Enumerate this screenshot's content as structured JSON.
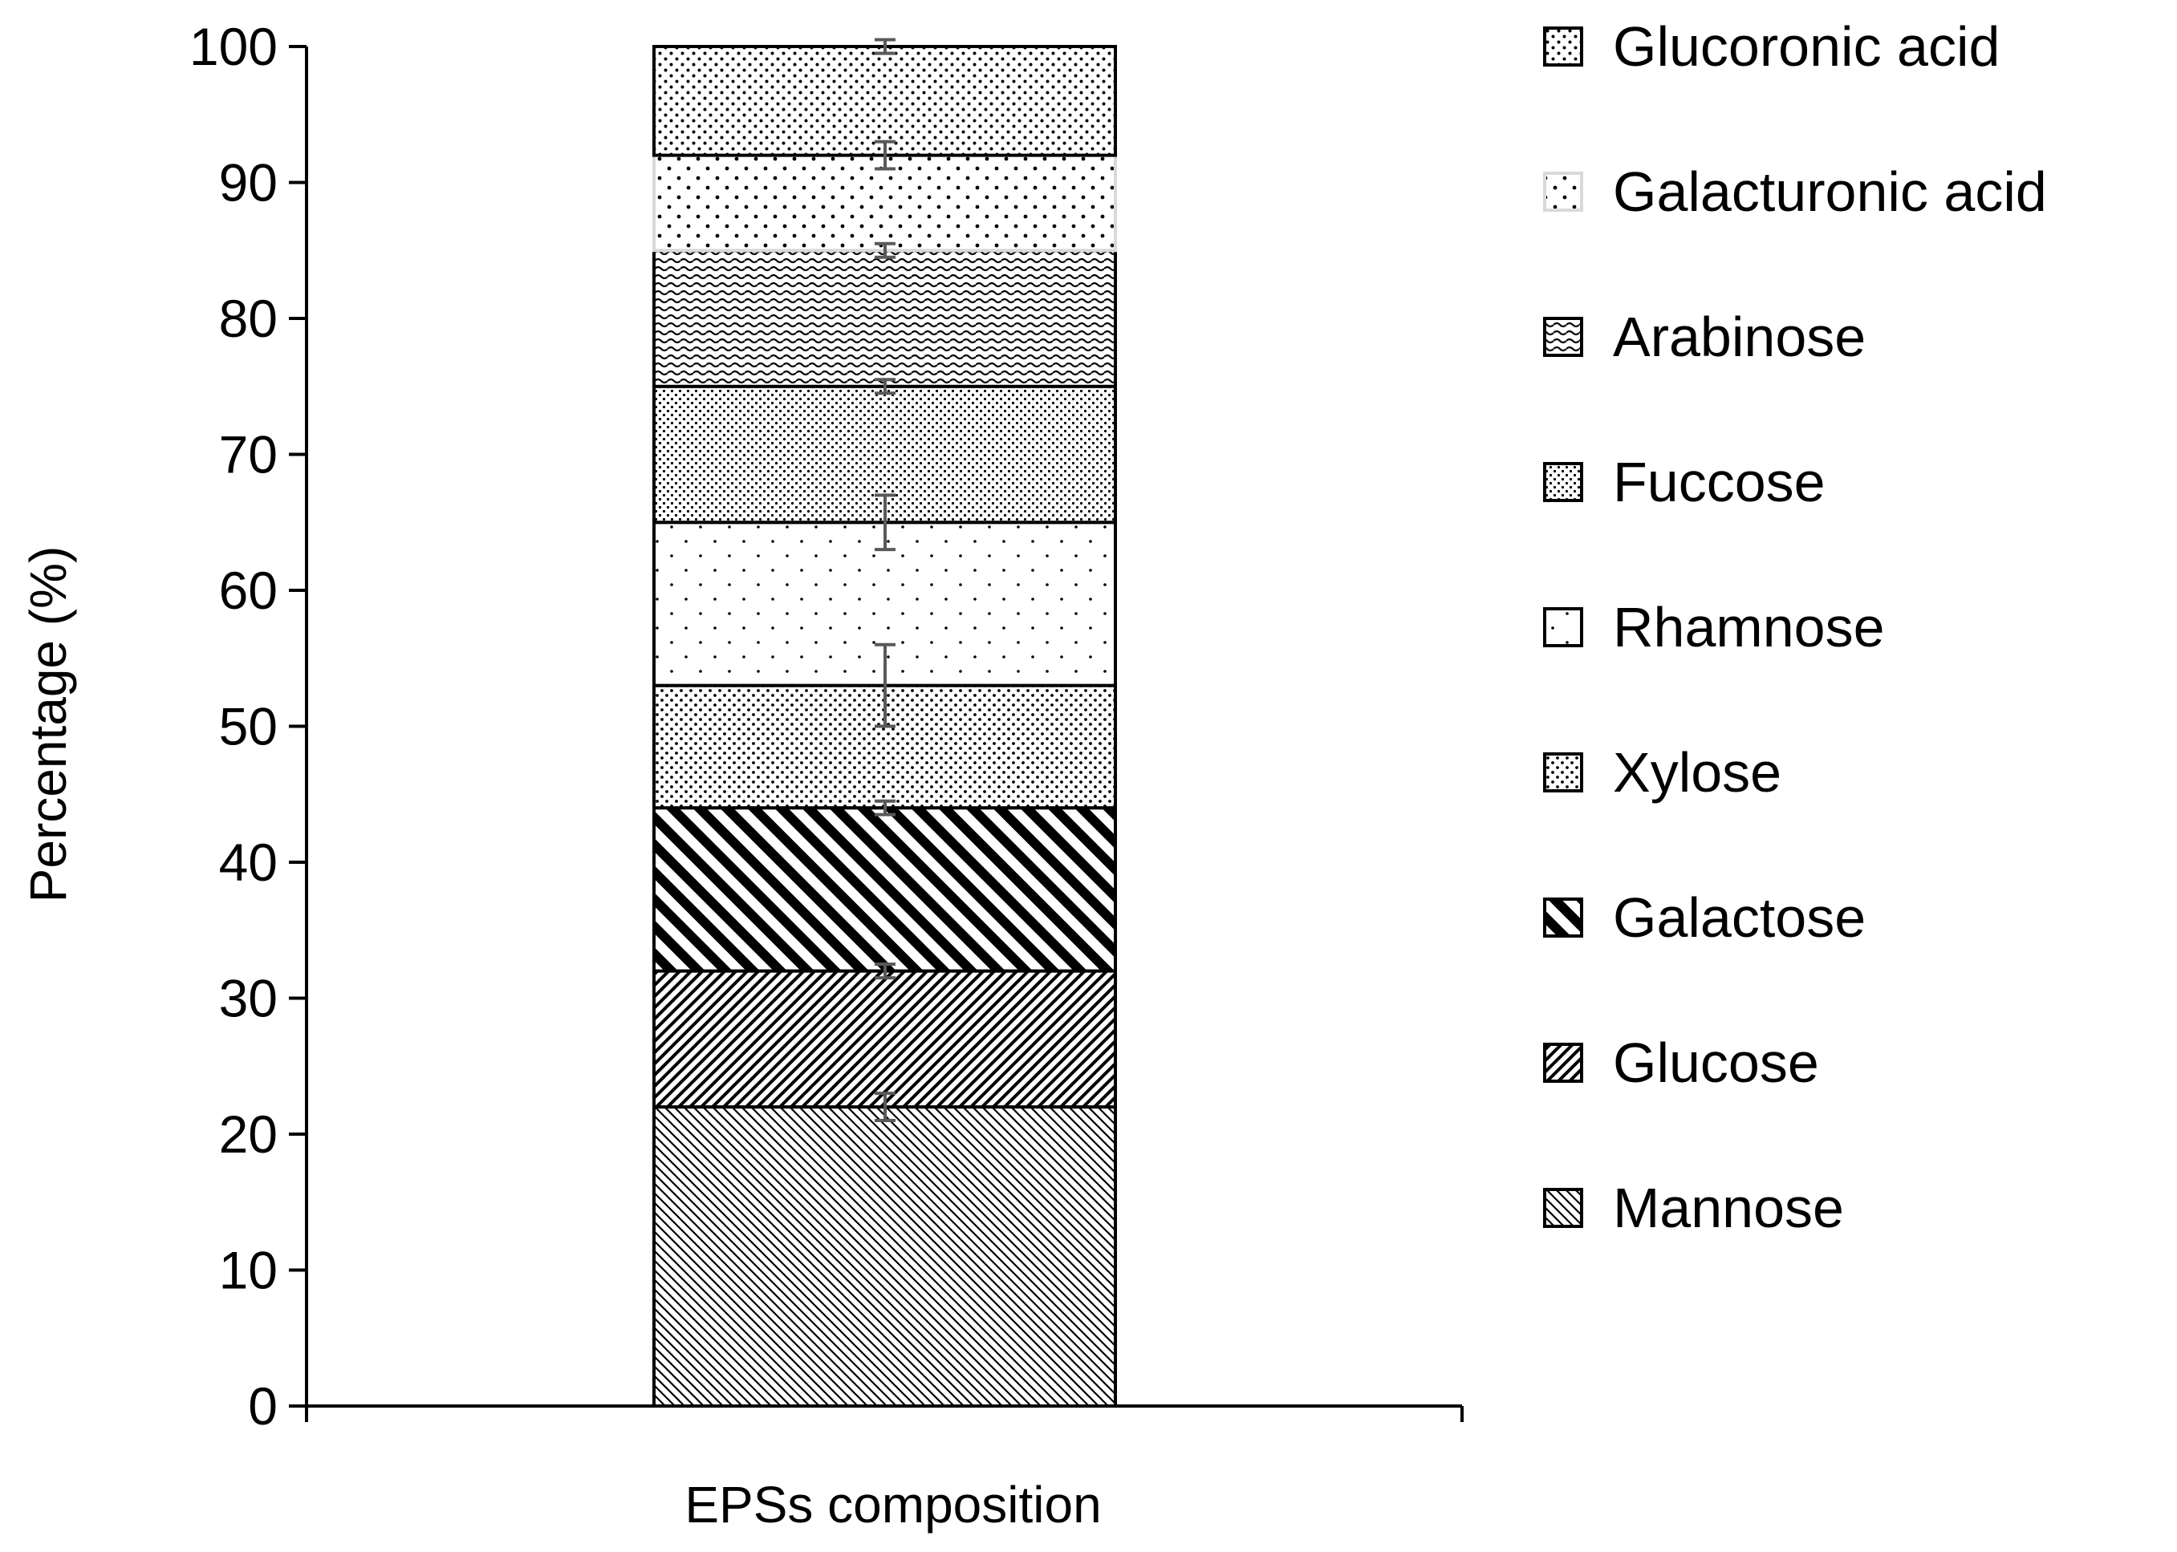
{
  "chart_data": {
    "type": "bar",
    "stacked": true,
    "title": "",
    "xlabel": "EPSs composition",
    "ylabel": "Percentage (%)",
    "ylim": [
      0,
      100
    ],
    "yticks": [
      0,
      10,
      20,
      30,
      40,
      50,
      60,
      70,
      80,
      90,
      100
    ],
    "grid": false,
    "legend_position": "right",
    "categories": [
      "EPSs composition"
    ],
    "series": [
      {
        "name": "Mannose",
        "values": [
          22
        ],
        "error": [
          1
        ],
        "pattern": "diag-dense-down"
      },
      {
        "name": "Glucose",
        "values": [
          10
        ],
        "error": [
          0.5
        ],
        "pattern": "diag-up"
      },
      {
        "name": "Galactose",
        "values": [
          12
        ],
        "error": [
          0.5
        ],
        "pattern": "diag-bold-down"
      },
      {
        "name": "Xylose",
        "values": [
          9
        ],
        "error": [
          3
        ],
        "pattern": "dots-medium"
      },
      {
        "name": "Rhamnose",
        "values": [
          12
        ],
        "error": [
          2
        ],
        "pattern": "dots-sparse"
      },
      {
        "name": "Fuccose",
        "values": [
          10
        ],
        "error": [
          0.5
        ],
        "pattern": "dots-small"
      },
      {
        "name": "Arabinose",
        "values": [
          10
        ],
        "error": [
          0.5
        ],
        "pattern": "waves"
      },
      {
        "name": "Galacturonic acid",
        "values": [
          7
        ],
        "error": [
          1
        ],
        "pattern": "dots-large"
      },
      {
        "name": "Glucoronic acid",
        "values": [
          8
        ],
        "error": [
          0.5
        ],
        "pattern": "dots-grid"
      }
    ],
    "legend_order": [
      "Glucoronic acid",
      "Galacturonic acid",
      "Arabinose",
      "Fuccose",
      "Rhamnose",
      "Xylose",
      "Galactose",
      "Glucose",
      "Mannose"
    ]
  }
}
